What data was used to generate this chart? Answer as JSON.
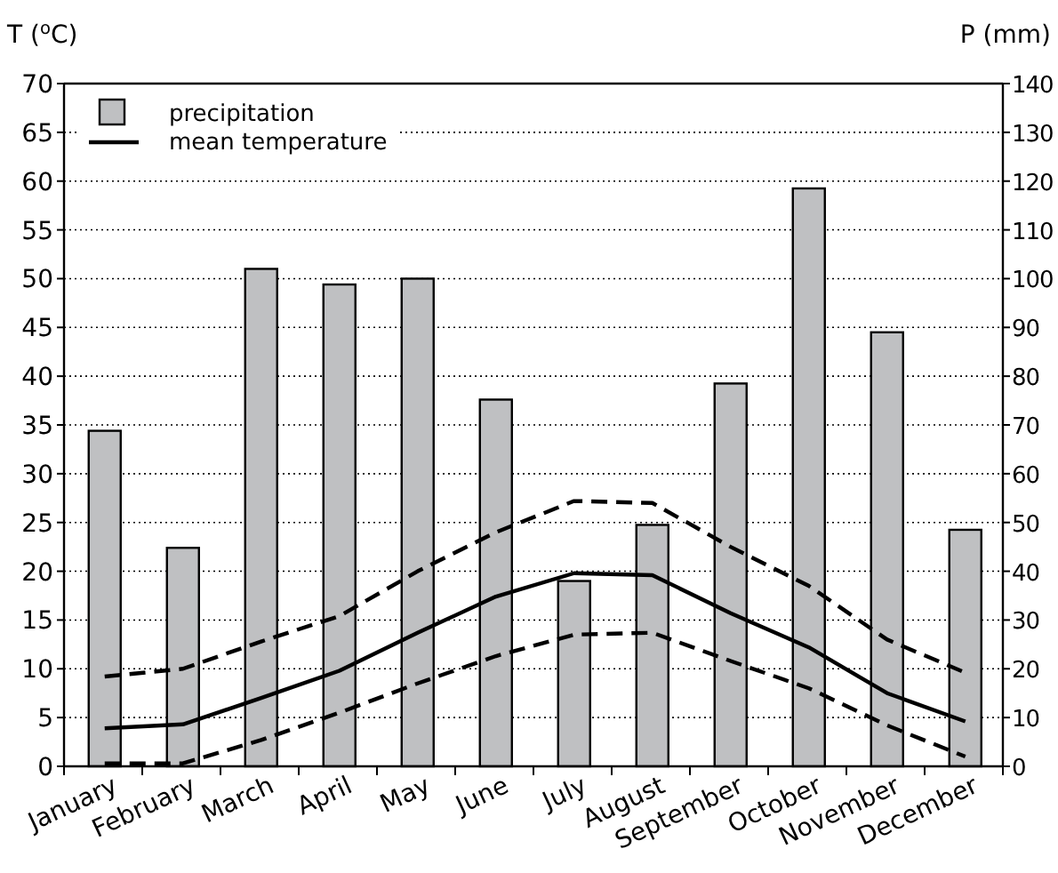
{
  "chart_data": {
    "type": "bar",
    "categories": [
      "January",
      "February",
      "March",
      "April",
      "May",
      "June",
      "July",
      "August",
      "September",
      "October",
      "November",
      "December"
    ],
    "ylabel": "T ($^{o}$C)",
    "y2label": "P (mm)",
    "ylim": [
      0,
      70
    ],
    "yticks": [
      0,
      5,
      10,
      15,
      20,
      25,
      30,
      35,
      40,
      45,
      50,
      55,
      60,
      65,
      70
    ],
    "y2lim": [
      0,
      140
    ],
    "y2ticks": [
      0,
      10,
      20,
      30,
      40,
      50,
      60,
      70,
      80,
      90,
      100,
      110,
      120,
      130,
      140
    ],
    "grid": "y",
    "legend": "top left",
    "series": [
      {
        "name": "precipitation",
        "axis": "y2",
        "color": "#bfc0c2",
        "values": [
          68.8,
          44.8,
          102,
          98.8,
          100,
          75.2,
          38,
          49.5,
          78.5,
          118.5,
          89,
          48.5
        ]
      },
      {
        "name": "mean temperature",
        "type": "line",
        "color": "#000000",
        "line_style": "solid",
        "values": [
          3.9,
          4.3,
          7,
          9.8,
          13.7,
          17.4,
          19.8,
          19.6,
          15.7,
          12.2,
          7.5,
          4.6
        ]
      },
      {
        "type": "line",
        "color": "#000000",
        "line_style": "dashed",
        "values": [
          9.2,
          10,
          12.8,
          15.4,
          20,
          24,
          27.2,
          27,
          22.5,
          18.5,
          13,
          9.6
        ]
      },
      {
        "type": "line",
        "color": "#000000",
        "line_style": "dashed",
        "values": [
          0.3,
          0.3,
          2.7,
          5.5,
          8.5,
          11.3,
          13.5,
          13.7,
          10.8,
          8,
          4.2,
          1
        ]
      }
    ]
  }
}
